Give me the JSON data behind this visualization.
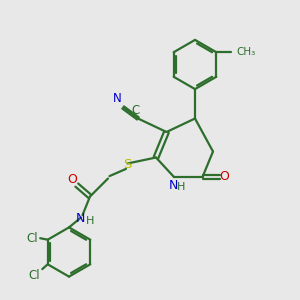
{
  "bg_color": "#e8e8e8",
  "bond_color": "#2d6e2d",
  "n_color": "#0000cc",
  "o_color": "#cc0000",
  "s_color": "#bbbb00",
  "cl_color": "#2d6e2d",
  "line_width": 1.6,
  "figsize": [
    3.0,
    3.0
  ],
  "dpi": 100,
  "xlim": [
    0,
    10
  ],
  "ylim": [
    0,
    10
  ]
}
